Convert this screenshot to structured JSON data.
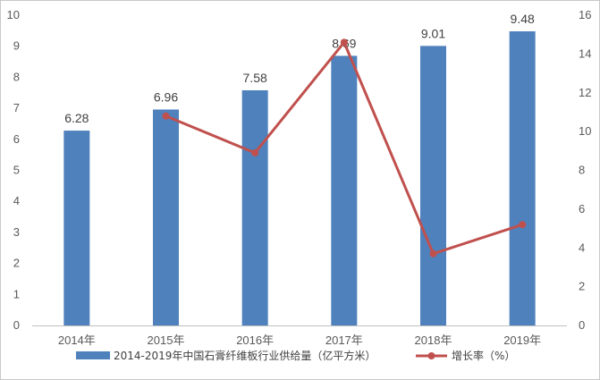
{
  "chart_data": {
    "type": "bar+line",
    "categories": [
      "2014年",
      "2015年",
      "2016年",
      "2017年",
      "2018年",
      "2019年"
    ],
    "series": [
      {
        "name": "2014-2019年中国石膏纤维板行业供给量（亿平方米）",
        "type": "bar",
        "axis": "left",
        "color": "#4f81bd",
        "values": [
          6.28,
          6.96,
          7.58,
          8.69,
          9.01,
          9.48
        ],
        "data_labels": [
          "6.28",
          "6.96",
          "7.58",
          "8.69",
          "9.01",
          "9.48"
        ]
      },
      {
        "name": "增长率（%）",
        "type": "line",
        "axis": "right",
        "color": "#c0504d",
        "values": [
          null,
          10.8,
          8.9,
          14.6,
          3.7,
          5.2
        ]
      }
    ],
    "y_left": {
      "min": 0,
      "max": 10,
      "ticks": [
        "0",
        "1",
        "2",
        "3",
        "4",
        "5",
        "6",
        "7",
        "8",
        "9",
        "10"
      ]
    },
    "y_right": {
      "min": 0,
      "max": 16,
      "ticks": [
        "0",
        "2",
        "4",
        "6",
        "8",
        "10",
        "12",
        "14",
        "16"
      ]
    },
    "grid": false,
    "legend_position": "bottom"
  }
}
